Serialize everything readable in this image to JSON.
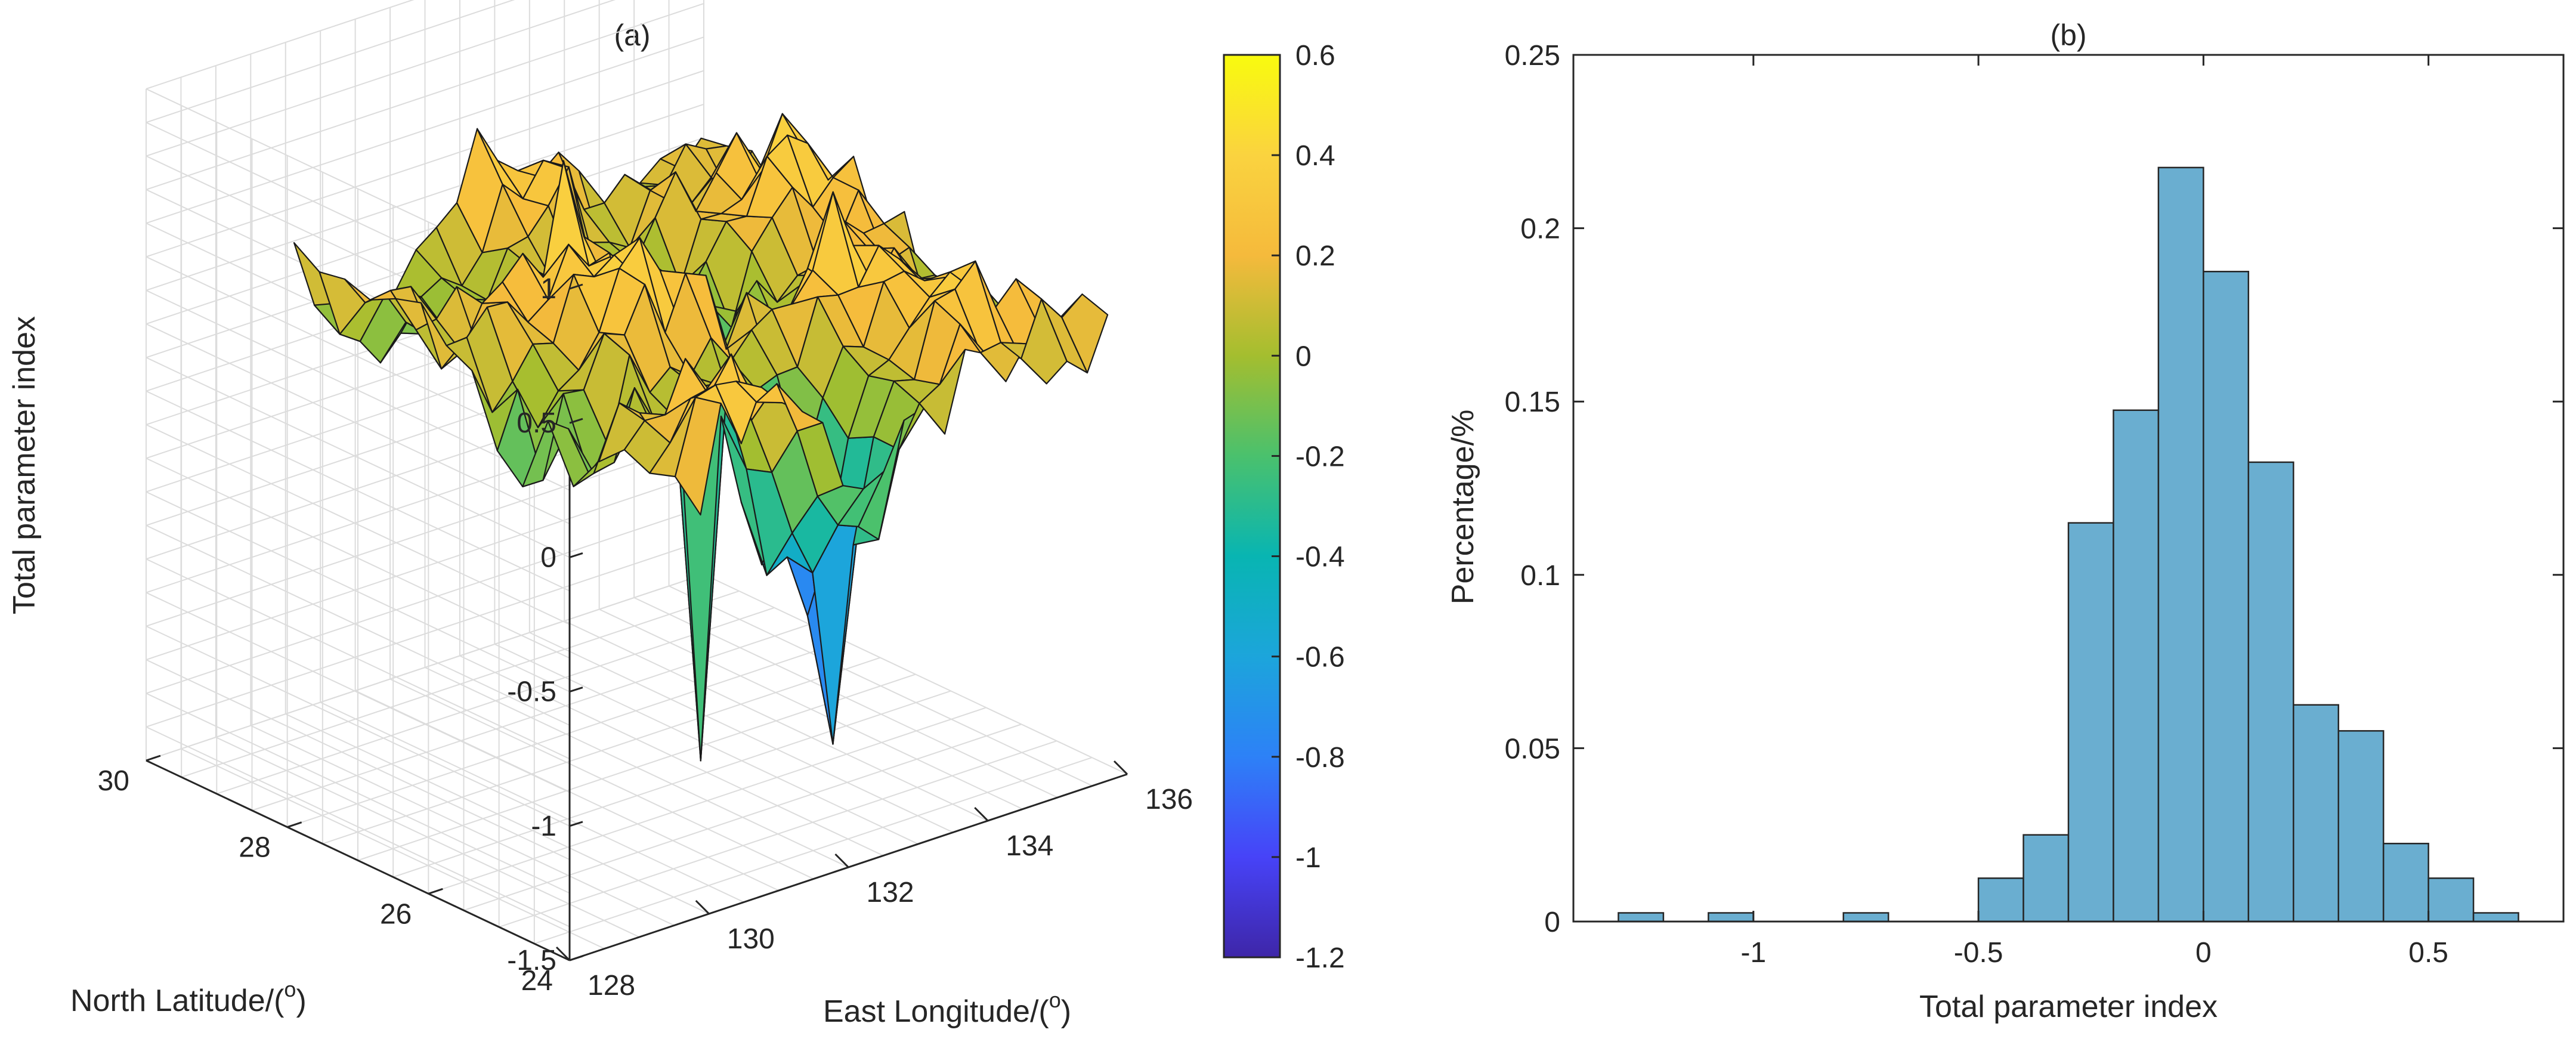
{
  "chart_data": [
    {
      "type": "surface3d",
      "title": "(a)",
      "xlabel": "East Longitude/(o)",
      "xlabel_main": "East Longitude/(",
      "xlabel_sup": "o",
      "xlabel_close": ")",
      "ylabel_main": "North Latitude/(",
      "ylabel_sup": "o",
      "ylabel_close": ")",
      "zlabel": "Total parameter index",
      "xlim": [
        128,
        136
      ],
      "ylim": [
        24,
        30
      ],
      "zlim": [
        -1.5,
        1
      ],
      "x_ticks": [
        "128",
        "130",
        "132",
        "134",
        "136"
      ],
      "y_ticks": [
        "24",
        "26",
        "28",
        "30"
      ],
      "z_ticks": [
        "-1.5",
        "-1",
        "-0.5",
        "0",
        "0.5",
        "1"
      ],
      "colorbar": {
        "range": [
          -1.2,
          0.6
        ],
        "ticks": [
          "0.6",
          "0.4",
          "0.2",
          "0",
          "-0.2",
          "-0.4",
          "-0.6",
          "-0.8",
          "-1",
          "-1.2"
        ],
        "colormap": [
          "#3e26a8",
          "#4743f8",
          "#2d81f7",
          "#1ca5db",
          "#08b5b2",
          "#4ac16d",
          "#a4be2f",
          "#f5ba3c",
          "#fad33f",
          "#f9fb0e"
        ]
      },
      "surface_note": "gridded surface of total parameter index over 128-136 E, 24-30 N; values mostly between -0.5 and 0.6 with isolated spikes near -1.2"
    },
    {
      "type": "histogram",
      "title": "(b)",
      "xlabel": "Total parameter index",
      "ylabel": "Percentage/%",
      "xlim": [
        -1.4,
        0.8
      ],
      "ylim": [
        0,
        0.25
      ],
      "x_ticks": [
        "-1",
        "-0.5",
        "0",
        "0.5"
      ],
      "y_ticks": [
        "0",
        "0.05",
        "0.1",
        "0.15",
        "0.2",
        "0.25"
      ],
      "bar_color": "#6aaed0",
      "bin_width": 0.1,
      "bin_centers": [
        -1.25,
        -1.05,
        -0.75,
        -0.45,
        -0.35,
        -0.25,
        -0.15,
        -0.05,
        0.05,
        0.15,
        0.25,
        0.35,
        0.45,
        0.55,
        0.65
      ],
      "values": [
        0.0025,
        0.0025,
        0.0025,
        0.0125,
        0.025,
        0.115,
        0.1475,
        0.2175,
        0.1875,
        0.1325,
        0.0625,
        0.055,
        0.0225,
        0.0125,
        0.0025
      ]
    }
  ]
}
